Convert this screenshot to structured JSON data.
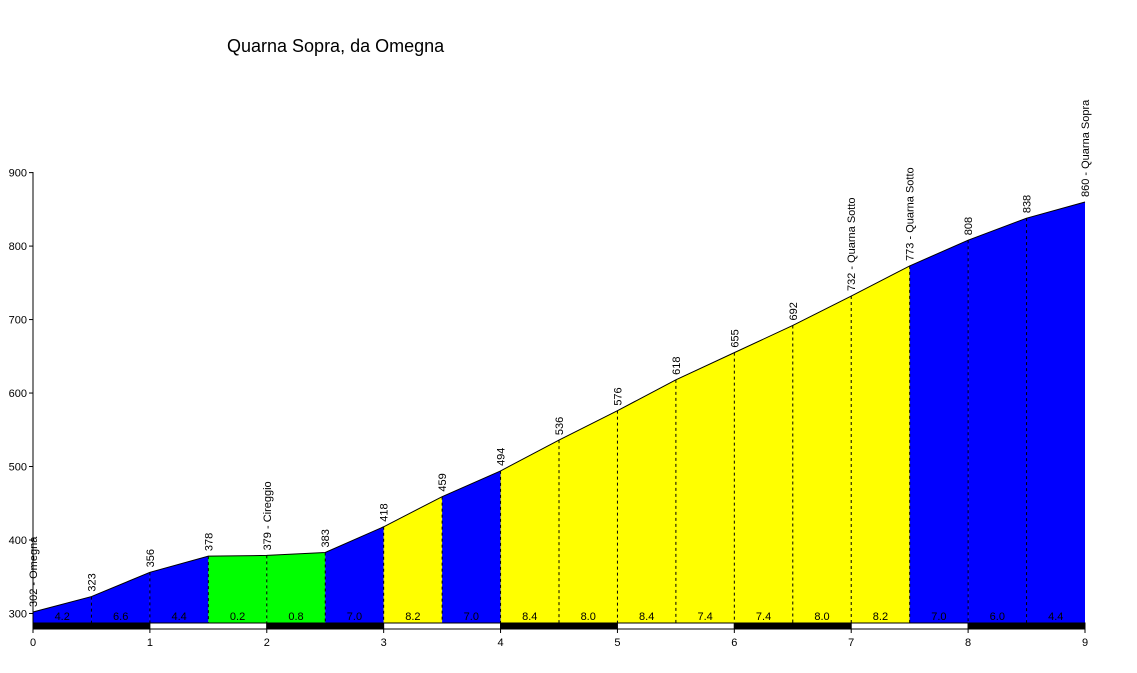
{
  "chart_data": {
    "type": "area",
    "title": "Quarna Sopra, da Omegna",
    "xlim": [
      0,
      9
    ],
    "ylim": [
      290,
      900
    ],
    "x_ticks": [
      0,
      1,
      2,
      3,
      4,
      5,
      6,
      7,
      8,
      9
    ],
    "y_ticks": [
      300,
      400,
      500,
      600,
      700,
      800,
      900
    ],
    "points": [
      {
        "x": 0.0,
        "y": 302,
        "label": "302 - Omegna"
      },
      {
        "x": 0.5,
        "y": 323,
        "label": "323"
      },
      {
        "x": 1.0,
        "y": 356,
        "label": "356"
      },
      {
        "x": 1.5,
        "y": 378,
        "label": "378"
      },
      {
        "x": 2.0,
        "y": 379,
        "label": "379 - Cireggio"
      },
      {
        "x": 2.5,
        "y": 383,
        "label": "383"
      },
      {
        "x": 3.0,
        "y": 418,
        "label": "418"
      },
      {
        "x": 3.5,
        "y": 459,
        "label": "459"
      },
      {
        "x": 4.0,
        "y": 494,
        "label": "494"
      },
      {
        "x": 4.5,
        "y": 536,
        "label": "536"
      },
      {
        "x": 5.0,
        "y": 576,
        "label": "576"
      },
      {
        "x": 5.5,
        "y": 618,
        "label": "618"
      },
      {
        "x": 6.0,
        "y": 655,
        "label": "655"
      },
      {
        "x": 6.5,
        "y": 692,
        "label": "692"
      },
      {
        "x": 7.0,
        "y": 732,
        "label": "732 - Quarna Sotto"
      },
      {
        "x": 7.5,
        "y": 773,
        "label": "773 - Quarna Sotto"
      },
      {
        "x": 8.0,
        "y": 808,
        "label": "808"
      },
      {
        "x": 8.5,
        "y": 838,
        "label": "838"
      },
      {
        "x": 9.0,
        "y": 860,
        "label": "860 - Quarna Sopra"
      }
    ],
    "segments": [
      {
        "grade": "4.2",
        "color": "#0000ff"
      },
      {
        "grade": "6.6",
        "color": "#0000ff"
      },
      {
        "grade": "4.4",
        "color": "#0000ff"
      },
      {
        "grade": "0.2",
        "color": "#00ff00"
      },
      {
        "grade": "0.8",
        "color": "#00ff00"
      },
      {
        "grade": "7.0",
        "color": "#0000ff"
      },
      {
        "grade": "8.2",
        "color": "#ffff00"
      },
      {
        "grade": "7.0",
        "color": "#0000ff"
      },
      {
        "grade": "8.4",
        "color": "#ffff00"
      },
      {
        "grade": "8.0",
        "color": "#ffff00"
      },
      {
        "grade": "8.4",
        "color": "#ffff00"
      },
      {
        "grade": "7.4",
        "color": "#ffff00"
      },
      {
        "grade": "7.4",
        "color": "#ffff00"
      },
      {
        "grade": "8.0",
        "color": "#ffff00"
      },
      {
        "grade": "8.2",
        "color": "#ffff00"
      },
      {
        "grade": "7.0",
        "color": "#0000ff"
      },
      {
        "grade": "6.0",
        "color": "#0000ff"
      },
      {
        "grade": "4.4",
        "color": "#0000ff"
      }
    ],
    "km_bar_colors": [
      "#000000",
      "#ffffff"
    ],
    "grid": false
  }
}
